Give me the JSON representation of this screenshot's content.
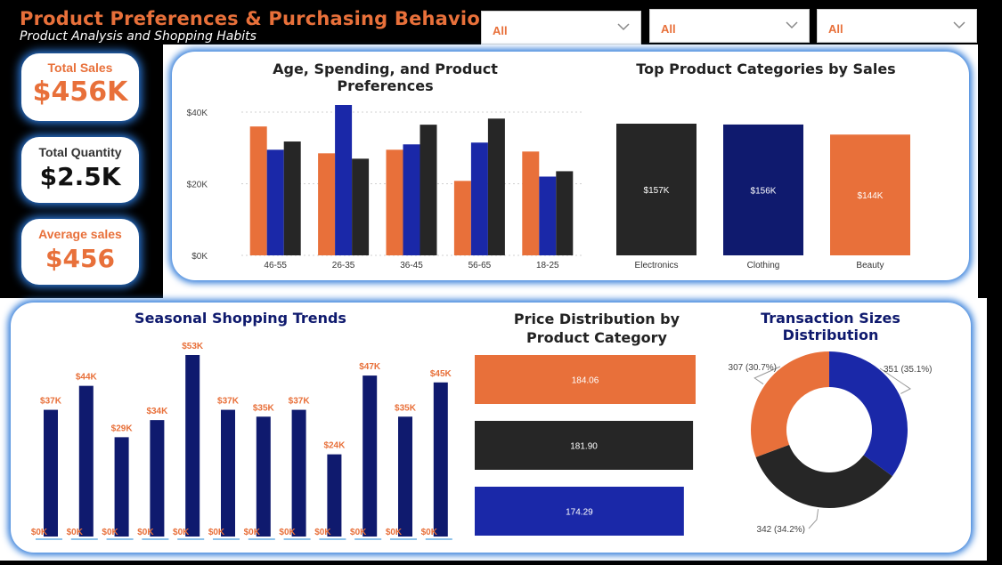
{
  "header": {
    "title": "Product Preferences & Purchasing Behaviors",
    "subtitle": "Product Analysis and Shopping Habits"
  },
  "slicers": [
    {
      "value": "All"
    },
    {
      "value": "All"
    },
    {
      "value": "All"
    }
  ],
  "kpis": [
    {
      "label": "Total Sales",
      "value": "$456K"
    },
    {
      "label": "Total Quantity",
      "value": "$2.5K"
    },
    {
      "label": "Average sales",
      "value": "$456"
    }
  ],
  "colors": {
    "orange": "#e8703a",
    "blue": "#1a28a8",
    "navy": "#0f1a6e",
    "dark": "#262626",
    "glow": "#2b78d8"
  },
  "chart_data": [
    {
      "type": "bar",
      "title": "Age, Spending, and Product Preferences",
      "categories": [
        "46-55",
        "26-35",
        "36-45",
        "56-65",
        "18-25"
      ],
      "series": [
        {
          "color": "#e8703a",
          "values": [
            36000,
            28500,
            29500,
            20800,
            29000
          ]
        },
        {
          "color": "#1a28a8",
          "values": [
            29500,
            42000,
            31000,
            31500,
            22000
          ]
        },
        {
          "color": "#262626",
          "values": [
            31800,
            27000,
            36500,
            38200,
            23500
          ]
        }
      ],
      "ylim": [
        0,
        42000
      ],
      "yticks": [
        "$0K",
        "$20K",
        "$40K"
      ],
      "grid": true
    },
    {
      "type": "bar",
      "title": "Top Product Categories by Sales",
      "categories": [
        "Electronics",
        "Clothing",
        "Beauty"
      ],
      "values": [
        157,
        156,
        144
      ],
      "labels": [
        "$157K",
        "$156K",
        "$144K"
      ],
      "colors": [
        "#262626",
        "#0f1a6e",
        "#e8703a"
      ]
    },
    {
      "type": "bar",
      "title": "Seasonal Shopping Trends",
      "values": [
        37,
        44,
        29,
        34,
        53,
        37,
        35,
        37,
        24,
        47,
        35,
        45
      ],
      "labels": [
        "$37K",
        "$44K",
        "$29K",
        "$34K",
        "$53K",
        "$37K",
        "$35K",
        "$37K",
        "$24K",
        "$47K",
        "$35K",
        "$45K"
      ],
      "zero_labels": [
        "$0K",
        "$0K",
        "$0K",
        "$0K",
        "$0K",
        "$0K",
        "$0K",
        "$0K",
        "$0K",
        "$0K",
        "$0K",
        "$0K"
      ],
      "color": "#0f1a6e"
    },
    {
      "type": "bar",
      "title": "Price Distribution by Product Category",
      "values": [
        184.06,
        181.9,
        174.29
      ],
      "labels": [
        "184.06",
        "181.90",
        "174.29"
      ],
      "colors": [
        "#e8703a",
        "#262626",
        "#1a28a8"
      ]
    },
    {
      "type": "pie",
      "title": "Transaction Sizes Distribution",
      "values": [
        351,
        342,
        307
      ],
      "labels": [
        "351 (35.1%)",
        "342 (34.2%)",
        "307 (30.7%)"
      ],
      "colors": [
        "#1a28a8",
        "#262626",
        "#e8703a"
      ]
    }
  ]
}
